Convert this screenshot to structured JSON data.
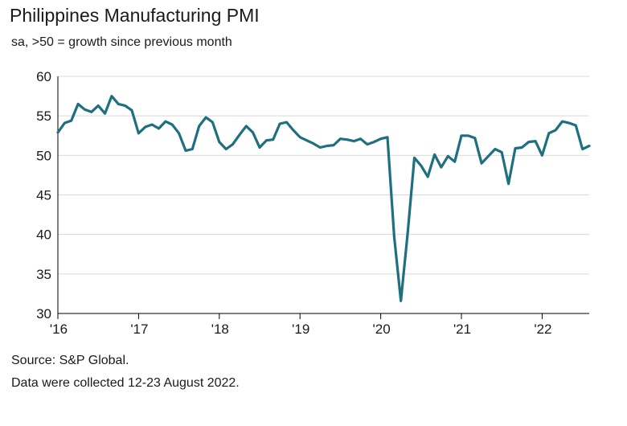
{
  "title": "Philippines Manufacturing PMI",
  "subtitle": "sa, >50 = growth since previous month",
  "source": "Source: S&P Global.",
  "note": "Data were collected 12-23 August 2022.",
  "colors": {
    "line": "#1e6f80",
    "grid": "#d9d9d9",
    "axis": "#000000"
  },
  "chart_data": {
    "type": "line",
    "title": "Philippines Manufacturing PMI",
    "subtitle": "sa, >50 = growth since previous month",
    "xlabel": "",
    "ylabel": "",
    "ylim": [
      30,
      60
    ],
    "yticks": [
      30,
      35,
      40,
      45,
      50,
      55,
      60
    ],
    "xticks": [
      "'16",
      "'17",
      "'18",
      "'19",
      "'20",
      "'21",
      "'22"
    ],
    "x_start": "Jan 2016",
    "x_end": "Aug 2022",
    "grid": "horizontal",
    "series": [
      {
        "name": "Philippines Manufacturing PMI",
        "values": [
          52.9,
          54.1,
          54.4,
          56.5,
          55.8,
          55.5,
          56.3,
          55.3,
          57.5,
          56.5,
          56.3,
          55.7,
          52.8,
          53.6,
          53.9,
          53.4,
          54.3,
          53.9,
          52.8,
          50.6,
          50.8,
          53.7,
          54.8,
          54.2,
          51.7,
          50.8,
          51.4,
          52.6,
          53.7,
          52.9,
          51.0,
          51.9,
          52.0,
          54.0,
          54.2,
          53.2,
          52.3,
          51.9,
          51.5,
          51.0,
          51.2,
          51.3,
          52.1,
          52.0,
          51.8,
          52.1,
          51.4,
          51.7,
          52.1,
          52.3,
          39.7,
          31.6,
          40.1,
          49.7,
          48.7,
          47.3,
          50.1,
          48.5,
          49.9,
          49.2,
          52.5,
          52.5,
          52.2,
          49.0,
          49.9,
          50.8,
          50.4,
          46.4,
          50.9,
          51.0,
          51.7,
          51.8,
          50.0,
          52.8,
          53.2,
          54.3,
          54.1,
          53.8,
          50.8,
          51.2
        ]
      }
    ]
  }
}
